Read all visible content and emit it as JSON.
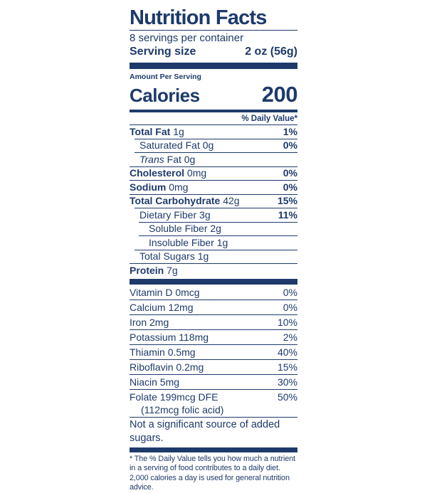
{
  "colors": {
    "navy": "#1e3a6b",
    "background": "#ffffff"
  },
  "header": {
    "title": "Nutrition Facts",
    "servings_per_container": "8 servings per container",
    "serving_size_label": "Serving size",
    "serving_size_value": "2 oz (56g)"
  },
  "calories": {
    "amount_per_serving_label": "Amount Per Serving",
    "label": "Calories",
    "value": "200"
  },
  "daily_value_header": "% Daily Value*",
  "nutrients": [
    {
      "name": "Total Fat",
      "amount": "1g",
      "dv": "1%"
    },
    {
      "name": "Saturated Fat",
      "amount": "0g",
      "dv": "0%"
    },
    {
      "name_italic": "Trans",
      "name": "Fat",
      "amount": "0g",
      "dv": ""
    },
    {
      "name": "Cholesterol",
      "amount": "0mg",
      "dv": "0%"
    },
    {
      "name": "Sodium",
      "amount": "0mg",
      "dv": "0%"
    },
    {
      "name": "Total Carbohydrate",
      "amount": "42g",
      "dv": "15%"
    },
    {
      "name": "Dietary Fiber",
      "amount": "3g",
      "dv": "11%"
    },
    {
      "name": "Soluble Fiber",
      "amount": "2g",
      "dv": ""
    },
    {
      "name": "Insoluble Fiber",
      "amount": "1g",
      "dv": ""
    },
    {
      "name": "Total Sugars",
      "amount": "1g",
      "dv": ""
    },
    {
      "name": "Protein",
      "amount": "7g",
      "dv": ""
    }
  ],
  "micronutrients": [
    {
      "name": "Vitamin D",
      "amount": "0mcg",
      "dv": "0%"
    },
    {
      "name": "Calcium",
      "amount": "12mg",
      "dv": "0%"
    },
    {
      "name": "Iron",
      "amount": "2mg",
      "dv": "10%"
    },
    {
      "name": "Potassium",
      "amount": "118mg",
      "dv": "2%"
    },
    {
      "name": "Thiamin",
      "amount": "0.5mg",
      "dv": "40%"
    },
    {
      "name": "Riboflavin",
      "amount": "0.2mg",
      "dv": "15%"
    },
    {
      "name": "Niacin",
      "amount": "5mg",
      "dv": "30%"
    },
    {
      "name": "Folate",
      "amount": "199mcg DFE",
      "note": "(112mcg folic acid)",
      "dv": "50%"
    }
  ],
  "not_significant_text": "Not a significant source of added sugars.",
  "footnote_text": "* The % Daily Value tells you how much a nutrient in a serving of food contributes to a daily diet. 2,000 calories a day is used for general nutrition advice."
}
